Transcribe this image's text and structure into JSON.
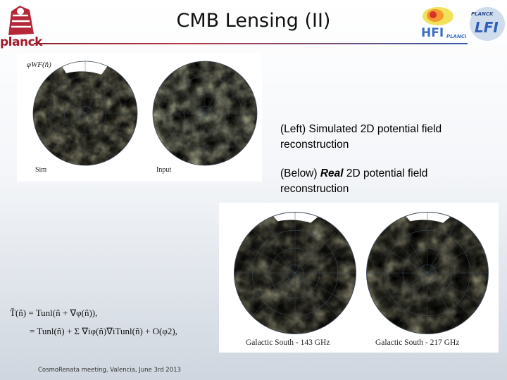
{
  "slide": {
    "title": "CMB Lensing (II)",
    "footer": "CosmoRenata meeting, Valencia, June 3rd 2013"
  },
  "logos": {
    "planck": "planck",
    "hfi": "HFI",
    "hfi_sub": "PLANCK",
    "lfi": "LFI",
    "lfi_sub": "PLANCK"
  },
  "captions": {
    "left": "(Left) Simulated 2D potential field reconstruction",
    "below_prefix": "(Below) ",
    "below_emph": "Real",
    "below_suffix": " 2D potential field reconstruction"
  },
  "figures": {
    "top": {
      "corner_label": "φWF(n̂)",
      "panel_left": "Sim",
      "panel_right": "Input"
    },
    "bottom": {
      "panel_left": "Galactic South - 143 GHz",
      "panel_right": "Galactic South - 217 GHz"
    }
  },
  "equation": {
    "line1": "T̃(n̂) = Tunl(n̂ + ∇φ(n̂)),",
    "line2": "= Tunl(n̂) + Σ ∇iφ(n̂)∇iTunl(n̂) + O(φ2),"
  },
  "colors": {
    "title_rule_red": "#8a1f2a",
    "title_rule_blue": "#3b5ea8",
    "planck_red": "#a31b2a",
    "map_deep": "#1f4f8f",
    "map_mid": "#6fa9c9",
    "map_light": "#f3efc4"
  }
}
